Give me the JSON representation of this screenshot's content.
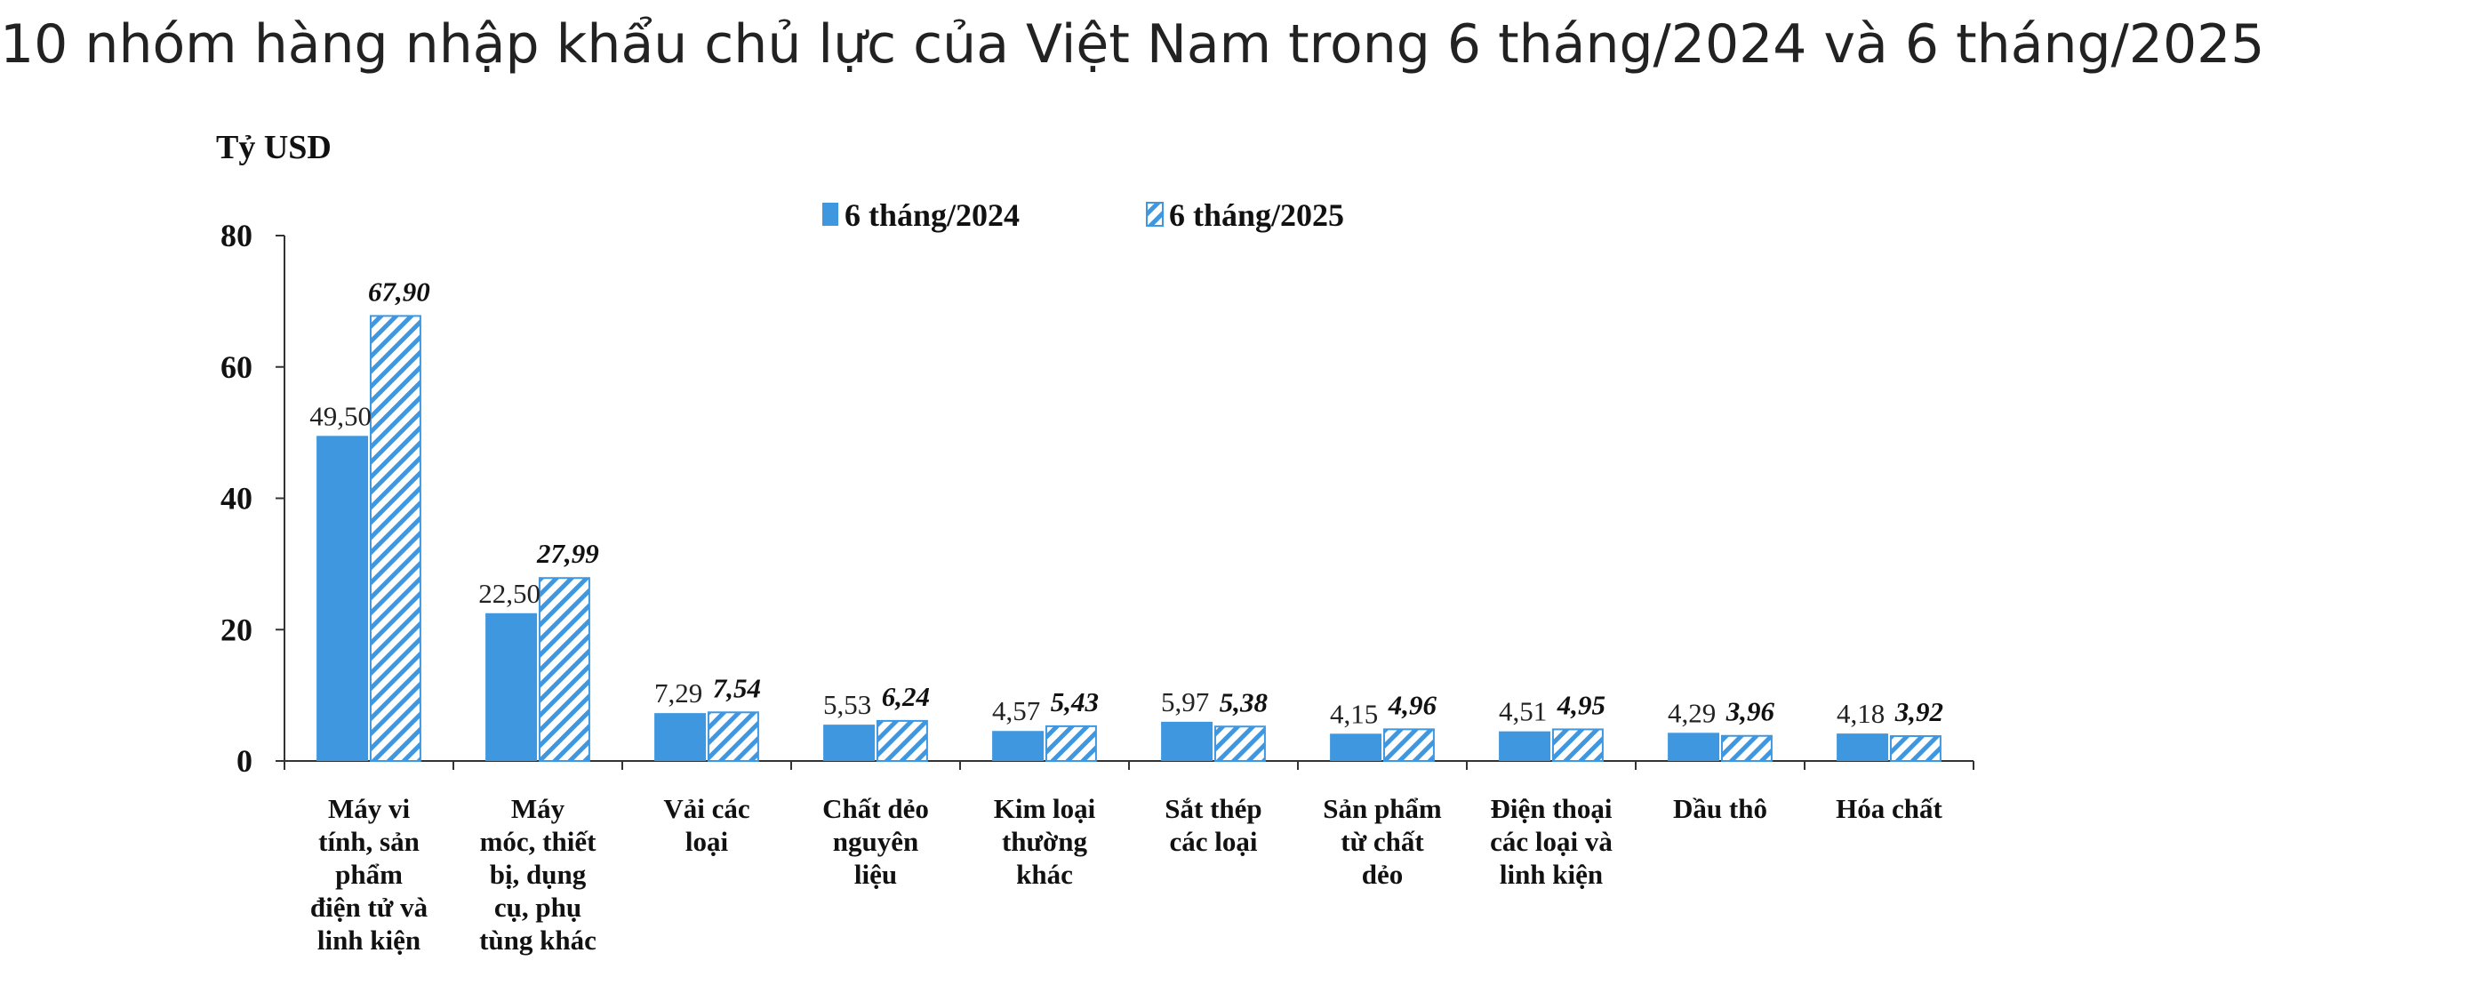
{
  "page": {
    "title": "10 nhóm hàng nhập khẩu chủ lực của Việt Nam trong 6 tháng/2024 và 6 tháng/2025"
  },
  "colors": {
    "series_2024_fill": "#3f97e0",
    "series_2025_stripe": "#3f97e0",
    "series_2025_background": "#ffffff",
    "axis": "#333333",
    "text": "#111111"
  },
  "chart_data": {
    "type": "bar",
    "title": "",
    "ylabel": "Tỷ USD",
    "xlabel": "",
    "ylim": [
      0,
      80
    ],
    "yticks": [
      "0",
      "20",
      "40",
      "60",
      "80"
    ],
    "grid": false,
    "legend_position": "top-center",
    "categories": [
      "Máy vi tính, sản phẩm điện tử và linh kiện",
      "Máy móc, thiết bị, dụng cụ, phụ tùng khác",
      "Vải các loại",
      "Chất dẻo nguyên liệu",
      "Kim loại thường khác",
      "Sắt thép các loại",
      "Sản phẩm từ chất dẻo",
      "Điện thoại các loại và linh kiện",
      "Dầu thô",
      "Hóa chất"
    ],
    "category_lines": [
      [
        "Máy vi",
        "tính, sản",
        "phẩm",
        "điện tử và",
        "linh kiện"
      ],
      [
        "Máy",
        "móc, thiết",
        "bị, dụng",
        "cụ, phụ",
        "tùng khác"
      ],
      [
        "Vải các",
        "loại"
      ],
      [
        "Chất dẻo",
        "nguyên",
        "liệu"
      ],
      [
        "Kim loại",
        "thường",
        "khác"
      ],
      [
        "Sắt thép",
        "các loại"
      ],
      [
        "Sản phẩm",
        "từ chất",
        "dẻo"
      ],
      [
        "Điện thoại",
        "các loại và",
        "linh kiện"
      ],
      [
        "Dầu thô"
      ],
      [
        "Hóa chất"
      ]
    ],
    "series": [
      {
        "name": "6 tháng/2024",
        "values": [
          49.5,
          22.5,
          7.29,
          5.53,
          4.57,
          5.97,
          4.15,
          4.51,
          4.29,
          4.18
        ],
        "labels": [
          "49,50",
          "22,50",
          "7,29",
          "5,53",
          "4,57",
          "5,97",
          "4,15",
          "4,51",
          "4,29",
          "4,18"
        ]
      },
      {
        "name": "6 tháng/2025",
        "values": [
          67.9,
          27.99,
          7.54,
          6.24,
          5.43,
          5.38,
          4.96,
          4.95,
          3.96,
          3.92
        ],
        "labels": [
          "67,90",
          "27,99",
          "7,54",
          "6,24",
          "5,43",
          "5,38",
          "4,96",
          "4,95",
          "3,96",
          "3,92"
        ]
      }
    ]
  }
}
